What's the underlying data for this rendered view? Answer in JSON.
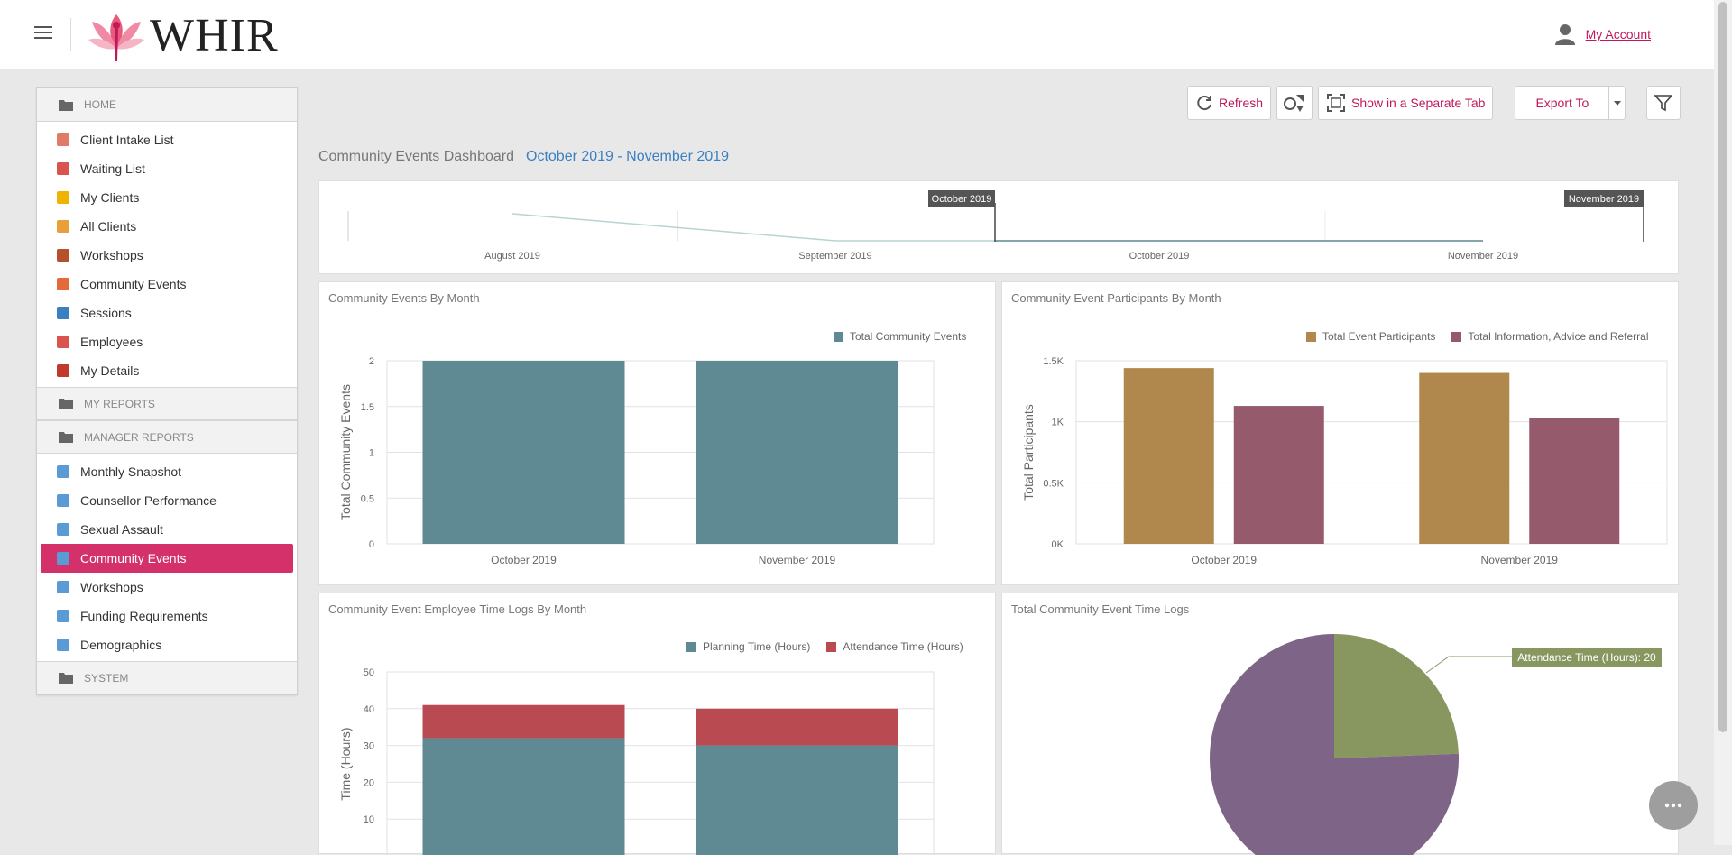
{
  "app": {
    "logo_text": "WHIR",
    "account_label": "My Account"
  },
  "sidebar": {
    "groups": [
      {
        "label": "HOME",
        "items": [
          {
            "label": "Client Intake List",
            "color": "#e07b67"
          },
          {
            "label": "Waiting List",
            "color": "#d9534f"
          },
          {
            "label": "My Clients",
            "color": "#f0b400"
          },
          {
            "label": "All Clients",
            "color": "#e8a03a"
          },
          {
            "label": "Workshops",
            "color": "#b5502d"
          },
          {
            "label": "Community Events",
            "color": "#e46a3a"
          },
          {
            "label": "Sessions",
            "color": "#3a7fc1"
          },
          {
            "label": "Employees",
            "color": "#d9534f"
          },
          {
            "label": "My Details",
            "color": "#c0392b"
          }
        ]
      },
      {
        "label": "MY REPORTS",
        "items": []
      },
      {
        "label": "MANAGER REPORTS",
        "items": [
          {
            "label": "Monthly Snapshot",
            "color": "#5a9bd5"
          },
          {
            "label": "Counsellor Performance",
            "color": "#5a9bd5"
          },
          {
            "label": "Sexual Assault",
            "color": "#5a9bd5"
          },
          {
            "label": "Community Events",
            "color": "#5a9bd5",
            "active": true
          },
          {
            "label": "Workshops",
            "color": "#5a9bd5"
          },
          {
            "label": "Funding Requirements",
            "color": "#5a9bd5"
          },
          {
            "label": "Demographics",
            "color": "#5a9bd5"
          }
        ]
      },
      {
        "label": "SYSTEM",
        "items": []
      }
    ]
  },
  "toolbar": {
    "refresh_label": "Refresh",
    "show_tab_label": "Show in a Separate Tab",
    "export_label": "Export To"
  },
  "dashboard": {
    "title": "Community Events Dashboard",
    "range": "October 2019 - November 2019"
  },
  "range_selector": {
    "labels": [
      "August 2019",
      "September 2019",
      "October 2019",
      "November 2019"
    ],
    "start_marker": "October 2019",
    "end_marker": "November 2019"
  },
  "panels": {
    "events_by_month": {
      "title": "Community Events By Month",
      "legend": "Total Community Events"
    },
    "participants_by_month": {
      "title": "Community Event Participants By Month",
      "legend1": "Total Event Participants",
      "legend2": "Total Information, Advice and Referral"
    },
    "time_logs_by_month": {
      "title": "Community Event Employee Time Logs By Month",
      "legend1": "Planning Time (Hours)",
      "legend2": "Attendance Time (Hours)"
    },
    "total_time_logs": {
      "title": "Total Community Event Time Logs",
      "callout": "Attendance Time (Hours): 20"
    }
  },
  "chart_data": [
    {
      "type": "bar",
      "title": "Community Events By Month",
      "categories": [
        "October 2019",
        "November 2019"
      ],
      "series": [
        {
          "name": "Total Community Events",
          "values": [
            2,
            2
          ],
          "color": "#5f8a94"
        }
      ],
      "ylabel": "Total Community Events",
      "yticks": [
        "0",
        "0.5",
        "1",
        "1.5",
        "2"
      ],
      "ylim": [
        0,
        2
      ]
    },
    {
      "type": "bar",
      "title": "Community Event Participants By Month",
      "categories": [
        "October 2019",
        "November 2019"
      ],
      "series": [
        {
          "name": "Total Event Participants",
          "values": [
            1440,
            1400
          ],
          "color": "#b0884e"
        },
        {
          "name": "Total Information, Advice and Referral",
          "values": [
            1130,
            1030
          ],
          "color": "#955a6c"
        }
      ],
      "ylabel": "Total Participants",
      "yticks": [
        "0K",
        "0.5K",
        "1K",
        "1.5K"
      ],
      "ylim": [
        0,
        1500
      ]
    },
    {
      "type": "bar",
      "title": "Community Event Employee Time Logs By Month",
      "categories": [
        "October 2019",
        "November 2019"
      ],
      "stacked": true,
      "series": [
        {
          "name": "Planning Time (Hours)",
          "values": [
            32,
            30
          ],
          "color": "#5f8a94"
        },
        {
          "name": "Attendance Time (Hours)",
          "values": [
            9,
            10
          ],
          "color": "#b94a52"
        }
      ],
      "ylabel": "Time (Hours)",
      "yticks": [
        "10",
        "20",
        "30",
        "40",
        "50"
      ],
      "ylim": [
        0,
        50
      ]
    },
    {
      "type": "pie",
      "title": "Total Community Event Time Logs",
      "series": [
        {
          "name": "Attendance Time (Hours)",
          "value": 20,
          "color": "#87975f"
        },
        {
          "name": "Planning Time (Hours)",
          "value": 62,
          "color": "#7e6587"
        }
      ]
    }
  ]
}
